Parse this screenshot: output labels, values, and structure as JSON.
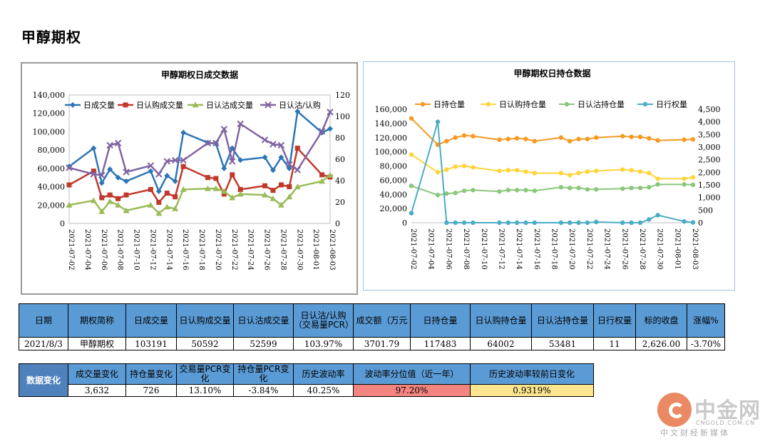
{
  "page": {
    "title": "甲醇期权"
  },
  "chart_data": [
    {
      "type": "line",
      "title": "甲醇期权日成交数据",
      "categories": [
        "2021-07-02",
        "2021-07-05",
        "2021-07-06",
        "2021-07-07",
        "2021-07-08",
        "2021-07-09",
        "2021-07-12",
        "2021-07-13",
        "2021-07-14",
        "2021-07-15",
        "2021-07-16",
        "2021-07-19",
        "2021-07-20",
        "2021-07-21",
        "2021-07-22",
        "2021-07-23",
        "2021-07-26",
        "2021-07-27",
        "2021-07-28",
        "2021-07-29",
        "2021-07-30",
        "2021-08-02",
        "2021-08-03"
      ],
      "x_tick_labels": [
        "2021-07-02",
        "2021-07-04",
        "2021-07-06",
        "2021-07-08",
        "2021-07-10",
        "2021-07-12",
        "2021-07-14",
        "2021-07-16",
        "2021-07-18",
        "2021-07-20",
        "2021-07-22",
        "2021-07-24",
        "2021-07-26",
        "2021-07-28",
        "2021-07-30",
        "2021-08-01",
        "2021-08-03"
      ],
      "x_day_offsets": [
        0,
        3,
        4,
        5,
        6,
        7,
        10,
        11,
        12,
        13,
        14,
        17,
        18,
        19,
        20,
        21,
        24,
        25,
        26,
        27,
        28,
        31,
        32
      ],
      "y_left": {
        "ylim": [
          0,
          140000
        ],
        "ticks": [
          "0",
          "20,000",
          "40,000",
          "60,000",
          "80,000",
          "100,000",
          "120,000",
          "140,000"
        ]
      },
      "y_right": {
        "ylim": [
          0,
          120
        ],
        "ticks": [
          "0",
          "20",
          "40",
          "60",
          "80",
          "100",
          "120"
        ]
      },
      "legend_position": "top",
      "series": [
        {
          "name": "日成交量",
          "axis": "left",
          "color": "#2e75b6",
          "marker": "diamond",
          "values": [
            62000,
            82000,
            44000,
            59000,
            50000,
            46000,
            57000,
            35000,
            52000,
            46000,
            99000,
            88000,
            87000,
            60000,
            82000,
            69000,
            72000,
            58000,
            72000,
            60000,
            122000,
            99000,
            103191
          ]
        },
        {
          "name": "日认购成交量",
          "axis": "left",
          "color": "#c0392b",
          "marker": "square",
          "values": [
            42000,
            57000,
            28000,
            31000,
            27000,
            31000,
            37000,
            23000,
            33000,
            29000,
            62000,
            50000,
            49000,
            32000,
            53000,
            37000,
            41000,
            36000,
            42000,
            40000,
            82000,
            53000,
            50592
          ]
        },
        {
          "name": "日认沽成交量",
          "axis": "left",
          "color": "#9bbb59",
          "marker": "triangle",
          "values": [
            20000,
            25000,
            13000,
            24000,
            20000,
            14000,
            20000,
            11000,
            18000,
            16000,
            37000,
            38000,
            38000,
            35000,
            28000,
            32000,
            31000,
            27000,
            20000,
            29000,
            40000,
            46000,
            52599
          ]
        },
        {
          "name": "日认沽/认购",
          "axis": "right",
          "color": "#8064a2",
          "marker": "cross",
          "values": [
            52,
            46,
            45,
            73,
            75,
            48,
            54,
            46,
            58,
            59,
            59,
            75,
            75,
            88,
            58,
            93,
            78,
            74,
            73,
            55,
            50,
            86,
            104
          ]
        }
      ]
    },
    {
      "type": "line",
      "title": "甲醇期权日持仓数据",
      "categories": [
        "2021-07-02",
        "2021-07-05",
        "2021-07-06",
        "2021-07-07",
        "2021-07-08",
        "2021-07-09",
        "2021-07-12",
        "2021-07-13",
        "2021-07-14",
        "2021-07-15",
        "2021-07-16",
        "2021-07-19",
        "2021-07-20",
        "2021-07-21",
        "2021-07-22",
        "2021-07-23",
        "2021-07-26",
        "2021-07-27",
        "2021-07-28",
        "2021-07-29",
        "2021-07-30",
        "2021-08-02",
        "2021-08-03"
      ],
      "x_tick_labels": [
        "2021-07-02",
        "2021-07-04",
        "2021-07-06",
        "2021-07-08",
        "2021-07-10",
        "2021-07-12",
        "2021-07-14",
        "2021-07-16",
        "2021-07-18",
        "2021-07-20",
        "2021-07-22",
        "2021-07-24",
        "2021-07-26",
        "2021-07-28",
        "2021-07-30",
        "2021-08-01",
        "2021-08-03"
      ],
      "x_day_offsets": [
        0,
        3,
        4,
        5,
        6,
        7,
        10,
        11,
        12,
        13,
        14,
        17,
        18,
        19,
        20,
        21,
        24,
        25,
        26,
        27,
        28,
        31,
        32
      ],
      "y_left": {
        "ylim": [
          0,
          160000
        ],
        "ticks": [
          "0",
          "20,000",
          "40,000",
          "60,000",
          "80,000",
          "100,000",
          "120,000",
          "140,000",
          "160,000"
        ]
      },
      "y_right": {
        "ylim": [
          0,
          4500
        ],
        "ticks": [
          "0",
          "500",
          "1,000",
          "1,500",
          "2,000",
          "2,500",
          "3,000",
          "3,500",
          "4,000",
          "4,500"
        ]
      },
      "legend_position": "top",
      "series": [
        {
          "name": "日持仓量",
          "axis": "left",
          "color": "#f59a23",
          "values": [
            147000,
            110000,
            115000,
            120000,
            123000,
            122000,
            117000,
            118000,
            119000,
            118000,
            115000,
            120000,
            115000,
            118000,
            118000,
            120000,
            122000,
            121000,
            121000,
            119000,
            116000,
            117000,
            117483
          ]
        },
        {
          "name": "日认购持仓量",
          "axis": "left",
          "color": "#ffd43b",
          "values": [
            96000,
            71000,
            75000,
            79000,
            80000,
            78000,
            73000,
            74000,
            74000,
            72000,
            70000,
            70000,
            67000,
            70000,
            72000,
            73000,
            75000,
            74000,
            72000,
            70000,
            62000,
            62000,
            64002
          ]
        },
        {
          "name": "日认沽持仓量",
          "axis": "left",
          "color": "#8ac77a",
          "values": [
            52000,
            39000,
            41000,
            42000,
            45000,
            46000,
            44000,
            46000,
            46000,
            46000,
            45000,
            50000,
            49000,
            49000,
            47000,
            47000,
            48000,
            49000,
            49000,
            50000,
            54000,
            54000,
            53481
          ]
        },
        {
          "name": "日行权量",
          "axis": "right",
          "color": "#4bacc6",
          "values": [
            380,
            4000,
            0,
            0,
            0,
            0,
            0,
            0,
            0,
            0,
            0,
            0,
            0,
            0,
            0,
            30,
            0,
            0,
            0,
            130,
            300,
            50,
            11
          ]
        }
      ]
    }
  ],
  "table_main": {
    "headers": [
      "日期",
      "期权简称",
      "日成交量",
      "日认购成交量",
      "日认沽成交量",
      "日认沽/认购（交易量PCR）",
      "成交额（万元",
      "日持仓量",
      "日认购持仓量",
      "日认沽持仓量",
      "日行权量",
      "标的收盘",
      "涨幅%"
    ],
    "row": [
      "2021/8/3",
      "甲醇期权",
      "103191",
      "50592",
      "52599",
      "103.97%",
      "3701.79",
      "117483",
      "64002",
      "53481",
      "11",
      "2,626.00",
      "-3.70%"
    ]
  },
  "table_change": {
    "label": "数据变化",
    "headers": [
      "成交量变化",
      "持仓量变化",
      "交易量PCR变化",
      "持仓量PCR变化",
      "历史波动率",
      "波动率分位值（近一年）",
      "历史波动率较前日变化"
    ],
    "row": [
      "3,632",
      "726",
      "13.10%",
      "-3.84%",
      "40.25%",
      "97.20%",
      "0.9319%"
    ],
    "highlight_colors": {
      "percentile": "#f4847f",
      "change": "#fbe58f"
    }
  },
  "logo": {
    "name": "中金网",
    "domain": "CNGOLD.COM.CN",
    "tagline": "中文财经新媒体"
  }
}
